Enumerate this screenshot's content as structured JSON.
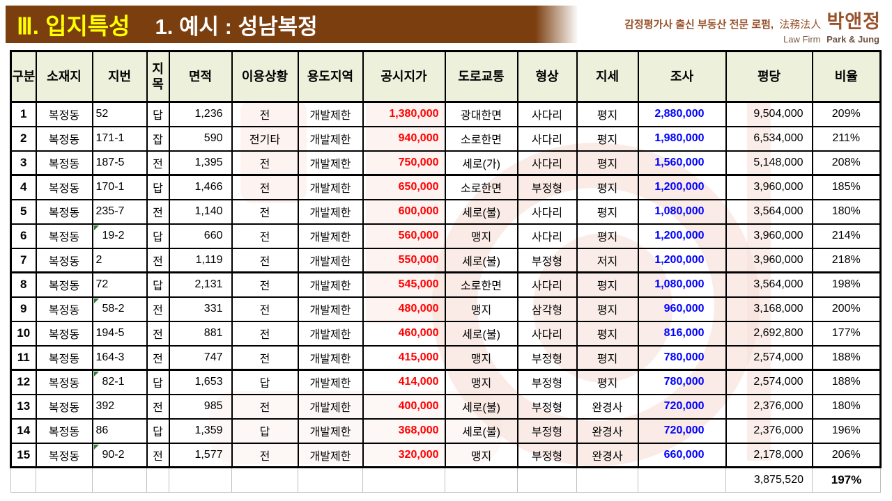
{
  "title": {
    "section": "Ⅲ. 입지특성",
    "subtitle": "1. 예시 : 성남복정"
  },
  "logo": {
    "tagline": "감정평가사 출신 부동산 전문 로펌,",
    "firm_cn": "法務法人",
    "firm_kr": "박앤정",
    "firm_en_prefix": "Law Firm",
    "firm_en": "Park & Jung"
  },
  "colors": {
    "title_bar": "#7b3e0f",
    "title_accent": "#ffff00",
    "header_bg": "#edf1dc",
    "official_price": "#ff0000",
    "survey_value": "#0000ff",
    "logo_brown": "#99522c",
    "watermark_pink": "#f5d8ce"
  },
  "table": {
    "headers": [
      "구분",
      "소재지",
      "지번",
      "지목",
      "면적",
      "이용상황",
      "용도지역",
      "공시지가",
      "도로교통",
      "형상",
      "지세",
      "조사",
      "평당",
      "비율"
    ],
    "rows": [
      {
        "no": "1",
        "sojaeji": "복정동",
        "jibun": "52",
        "jimok": "답",
        "area": "1,236",
        "use": "전",
        "zone": "개발제한",
        "official": "1,380,000",
        "road": "광대한면",
        "shape": "사다리",
        "terrain": "평지",
        "survey": "2,880,000",
        "pyeong": "9,504,000",
        "ratio": "209%",
        "flag": false
      },
      {
        "no": "2",
        "sojaeji": "복정동",
        "jibun": "171-1",
        "jimok": "잡",
        "area": "590",
        "use": "전기타",
        "zone": "개발제한",
        "official": "940,000",
        "road": "소로한면",
        "shape": "사다리",
        "terrain": "평지",
        "survey": "1,980,000",
        "pyeong": "6,534,000",
        "ratio": "211%",
        "flag": false
      },
      {
        "no": "3",
        "sojaeji": "복정동",
        "jibun": "187-5",
        "jimok": "전",
        "area": "1,395",
        "use": "전",
        "zone": "개발제한",
        "official": "750,000",
        "road": "세로(가)",
        "shape": "사다리",
        "terrain": "평지",
        "survey": "1,560,000",
        "pyeong": "5,148,000",
        "ratio": "208%",
        "flag": false
      },
      {
        "no": "4",
        "sojaeji": "복정동",
        "jibun": "170-1",
        "jimok": "답",
        "area": "1,466",
        "use": "전",
        "zone": "개발제한",
        "official": "650,000",
        "road": "소로한면",
        "shape": "부정형",
        "terrain": "평지",
        "survey": "1,200,000",
        "pyeong": "3,960,000",
        "ratio": "185%",
        "flag": false
      },
      {
        "no": "5",
        "sojaeji": "복정동",
        "jibun": "235-7",
        "jimok": "전",
        "area": "1,140",
        "use": "전",
        "zone": "개발제한",
        "official": "600,000",
        "road": "세로(불)",
        "shape": "사다리",
        "terrain": "평지",
        "survey": "1,080,000",
        "pyeong": "3,564,000",
        "ratio": "180%",
        "flag": false
      },
      {
        "no": "6",
        "sojaeji": "복정동",
        "jibun": "19-2",
        "jimok": "답",
        "area": "660",
        "use": "전",
        "zone": "개발제한",
        "official": "560,000",
        "road": "맹지",
        "shape": "사다리",
        "terrain": "평지",
        "survey": "1,200,000",
        "pyeong": "3,960,000",
        "ratio": "214%",
        "flag": true
      },
      {
        "no": "7",
        "sojaeji": "복정동",
        "jibun": "2",
        "jimok": "전",
        "area": "1,119",
        "use": "전",
        "zone": "개발제한",
        "official": "550,000",
        "road": "세로(불)",
        "shape": "부정형",
        "terrain": "저지",
        "survey": "1,200,000",
        "pyeong": "3,960,000",
        "ratio": "218%",
        "flag": false
      },
      {
        "no": "8",
        "sojaeji": "복정동",
        "jibun": "72",
        "jimok": "답",
        "area": "2,131",
        "use": "전",
        "zone": "개발제한",
        "official": "545,000",
        "road": "소로한면",
        "shape": "사다리",
        "terrain": "평지",
        "survey": "1,080,000",
        "pyeong": "3,564,000",
        "ratio": "198%",
        "flag": false
      },
      {
        "no": "9",
        "sojaeji": "복정동",
        "jibun": "58-2",
        "jimok": "전",
        "area": "331",
        "use": "전",
        "zone": "개발제한",
        "official": "480,000",
        "road": "맹지",
        "shape": "삼각형",
        "terrain": "평지",
        "survey": "960,000",
        "pyeong": "3,168,000",
        "ratio": "200%",
        "flag": true
      },
      {
        "no": "10",
        "sojaeji": "복정동",
        "jibun": "194-5",
        "jimok": "전",
        "area": "881",
        "use": "전",
        "zone": "개발제한",
        "official": "460,000",
        "road": "세로(불)",
        "shape": "사다리",
        "terrain": "평지",
        "survey": "816,000",
        "pyeong": "2,692,800",
        "ratio": "177%",
        "flag": false
      },
      {
        "no": "11",
        "sojaeji": "복정동",
        "jibun": "164-3",
        "jimok": "전",
        "area": "747",
        "use": "전",
        "zone": "개발제한",
        "official": "415,000",
        "road": "맹지",
        "shape": "부정형",
        "terrain": "평지",
        "survey": "780,000",
        "pyeong": "2,574,000",
        "ratio": "188%",
        "flag": false
      },
      {
        "no": "12",
        "sojaeji": "복정동",
        "jibun": "82-1",
        "jimok": "답",
        "area": "1,653",
        "use": "답",
        "zone": "개발제한",
        "official": "414,000",
        "road": "맹지",
        "shape": "부정형",
        "terrain": "평지",
        "survey": "780,000",
        "pyeong": "2,574,000",
        "ratio": "188%",
        "flag": true
      },
      {
        "no": "13",
        "sojaeji": "복정동",
        "jibun": "392",
        "jimok": "전",
        "area": "985",
        "use": "전",
        "zone": "개발제한",
        "official": "400,000",
        "road": "세로(불)",
        "shape": "부정형",
        "terrain": "완경사",
        "survey": "720,000",
        "pyeong": "2,376,000",
        "ratio": "180%",
        "flag": false
      },
      {
        "no": "14",
        "sojaeji": "복정동",
        "jibun": "86",
        "jimok": "답",
        "area": "1,359",
        "use": "답",
        "zone": "개발제한",
        "official": "368,000",
        "road": "세로(불)",
        "shape": "부정형",
        "terrain": "완경사",
        "survey": "720,000",
        "pyeong": "2,376,000",
        "ratio": "196%",
        "flag": false
      },
      {
        "no": "15",
        "sojaeji": "복정동",
        "jibun": "90-2",
        "jimok": "전",
        "area": "1,577",
        "use": "전",
        "zone": "개발제한",
        "official": "320,000",
        "road": "맹지",
        "shape": "부정형",
        "terrain": "완경사",
        "survey": "660,000",
        "pyeong": "2,178,000",
        "ratio": "206%",
        "flag": true
      }
    ],
    "total": {
      "pyeong": "3,875,520",
      "ratio": "197%"
    }
  }
}
